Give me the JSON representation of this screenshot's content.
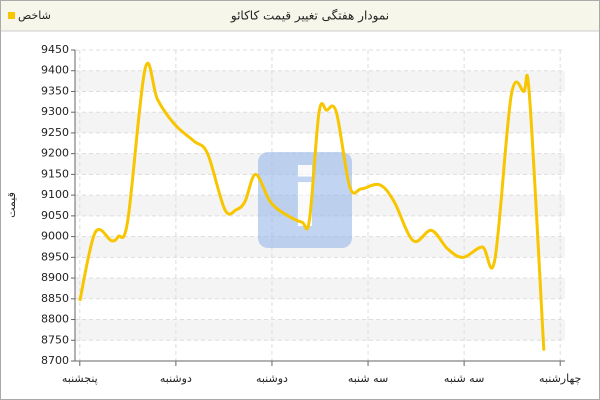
{
  "chart_data": {
    "type": "line",
    "title": "نمودار هفتگی تغییر قیمت کاکائو",
    "y_label": "قیمت",
    "x": [
      0,
      0.16,
      0.33,
      0.4,
      0.5,
      0.68,
      0.81,
      0.99,
      1.19,
      1.33,
      1.51,
      1.63,
      1.72,
      1.83,
      1.98,
      2.13,
      2.31,
      2.39,
      2.49,
      2.57,
      2.67,
      2.81,
      2.93,
      3.12,
      3.27,
      3.47,
      3.66,
      3.83,
      3.99,
      4.19,
      4.32,
      4.49,
      4.62,
      4.68,
      4.83
    ],
    "series": [
      {
        "name": "شاخص",
        "color": "#f7c600",
        "values": [
          8845,
          9010,
          8990,
          9000,
          9040,
          9405,
          9330,
          9270,
          9230,
          9200,
          9065,
          9065,
          9085,
          9150,
          9085,
          9055,
          9035,
          9040,
          9300,
          9305,
          9300,
          9120,
          9115,
          9125,
          9085,
          8990,
          9015,
          8970,
          8950,
          8975,
          8945,
          9340,
          9350,
          9340,
          8725
        ]
      }
    ],
    "xlim": [
      -0.05,
      5.05
    ],
    "xticks": [
      {
        "value": 0,
        "label": "پنجشنبه"
      },
      {
        "value": 1,
        "label": "دوشنبه"
      },
      {
        "value": 2,
        "label": "دوشنبه"
      },
      {
        "value": 3,
        "label": "سه شنبه"
      },
      {
        "value": 4,
        "label": "سه شنبه"
      },
      {
        "value": 5,
        "label": "چهارشنبه"
      }
    ],
    "ylim": [
      8700,
      9450
    ],
    "yticks": [
      8700,
      8750,
      8800,
      8850,
      8900,
      8950,
      9000,
      9050,
      9100,
      9150,
      9200,
      9250,
      9300,
      9350,
      9400,
      9450
    ],
    "grid": true,
    "legend": "top-left"
  }
}
